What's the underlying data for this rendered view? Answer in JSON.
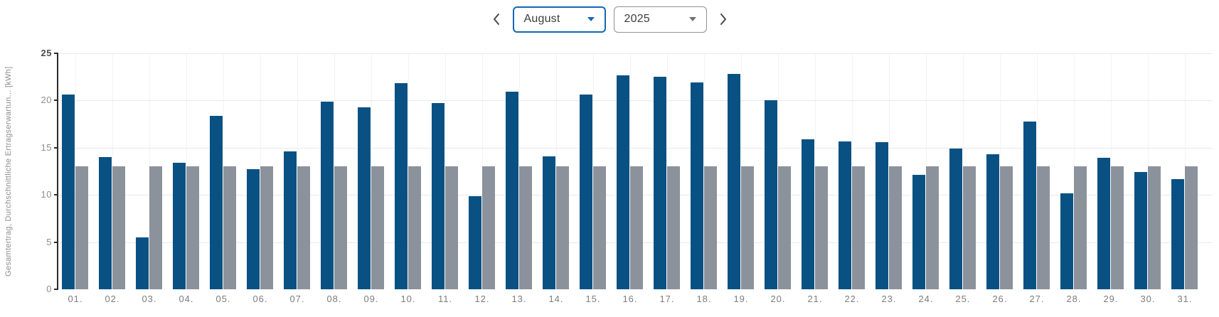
{
  "header": {
    "month_select": {
      "value": "August"
    },
    "year_select": {
      "value": "2025"
    },
    "prev_button": {
      "icon": "chevron-left"
    },
    "next_button": {
      "icon": "chevron-right"
    }
  },
  "colors": {
    "accent_blue": "#1268b3",
    "bar_blue": "#0a5183",
    "bar_gray": "#8b929b",
    "axis": "#2b2b2b"
  },
  "chart_data": {
    "type": "bar",
    "title": "",
    "categories": [
      "01.",
      "02.",
      "03.",
      "04.",
      "05.",
      "06.",
      "07.",
      "08.",
      "09.",
      "10.",
      "11.",
      "12.",
      "13.",
      "14.",
      "15.",
      "16.",
      "17.",
      "18.",
      "19.",
      "20.",
      "21.",
      "22.",
      "23.",
      "24.",
      "25.",
      "26.",
      "27.",
      "28.",
      "29.",
      "30.",
      "31."
    ],
    "series": [
      {
        "name": "Gesamtertrag",
        "color": "#0a5183",
        "values": [
          20.6,
          14.0,
          5.5,
          13.4,
          18.4,
          12.7,
          14.6,
          19.9,
          19.3,
          21.8,
          19.7,
          9.9,
          20.9,
          14.1,
          20.6,
          22.7,
          22.5,
          21.9,
          22.8,
          20.0,
          15.9,
          15.7,
          15.6,
          12.1,
          14.9,
          14.3,
          17.8,
          10.2,
          13.9,
          12.4,
          11.7
        ]
      },
      {
        "name": "Durchschnittliche Ertragserwartung",
        "color": "#8b929b",
        "values": [
          13,
          13,
          13,
          13,
          13,
          13,
          13,
          13,
          13,
          13,
          13,
          13,
          13,
          13,
          13,
          13,
          13,
          13,
          13,
          13,
          13,
          13,
          13,
          13,
          13,
          13,
          13,
          13,
          13,
          13,
          13
        ]
      }
    ],
    "xlabel": "",
    "ylabel": "Gesamtertrag, Durchschnittliche Ertragserwartun... [kWh]",
    "ylim": [
      0,
      25
    ],
    "yticks": [
      0,
      5,
      10,
      15,
      20,
      25
    ],
    "grid": true,
    "legend_position": "none"
  }
}
